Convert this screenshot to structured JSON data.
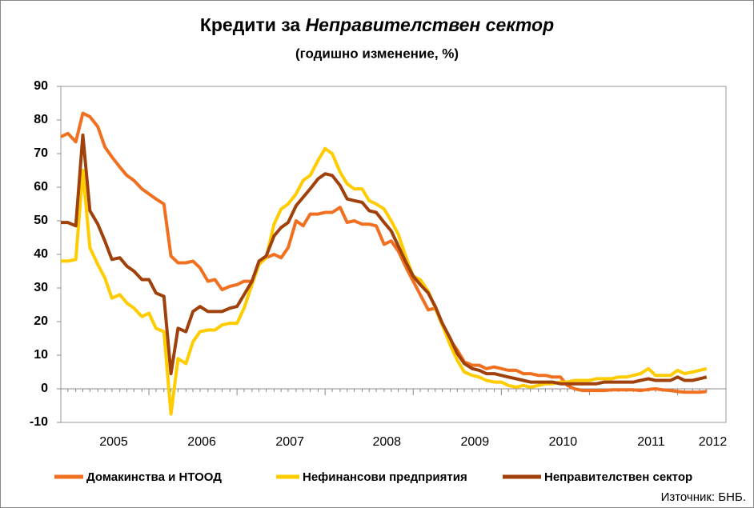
{
  "chart_data": {
    "type": "line",
    "title": "Кредити за",
    "title_emphasis": "Неправителствен сектор",
    "subtitle": "(годишно изменение, %)",
    "source": "Източник: БНБ.",
    "x": [
      2005,
      2005.08,
      2005.17,
      2005.25,
      2005.33,
      2005.42,
      2005.5,
      2005.58,
      2005.67,
      2005.75,
      2005.83,
      2005.92,
      2006,
      2006.08,
      2006.17,
      2006.25,
      2006.33,
      2006.42,
      2006.5,
      2006.58,
      2006.67,
      2006.75,
      2006.83,
      2006.92,
      2007,
      2007.08,
      2007.17,
      2007.25,
      2007.33,
      2007.42,
      2007.5,
      2007.58,
      2007.67,
      2007.75,
      2007.83,
      2007.92,
      2008,
      2008.08,
      2008.17,
      2008.25,
      2008.33,
      2008.42,
      2008.5,
      2008.58,
      2008.67,
      2008.75,
      2008.83,
      2008.92,
      2009,
      2009.08,
      2009.17,
      2009.25,
      2009.33,
      2009.42,
      2009.5,
      2009.58,
      2009.67,
      2009.75,
      2009.83,
      2009.92,
      2010,
      2010.08,
      2010.17,
      2010.25,
      2010.33,
      2010.42,
      2010.5,
      2010.58,
      2010.67,
      2010.75,
      2010.83,
      2010.92,
      2011,
      2011.08,
      2011.17,
      2011.25,
      2011.33,
      2011.42,
      2011.5,
      2011.58,
      2011.67,
      2011.75,
      2011.83,
      2011.92,
      2012,
      2012.08,
      2012.17,
      2012.25,
      2012.33
    ],
    "series": [
      {
        "name": "Домакинства и НТООД",
        "color": "#f07020",
        "values": [
          75,
          76,
          73.5,
          82,
          81,
          78,
          72,
          69,
          66,
          63.5,
          62,
          59.5,
          58,
          56.5,
          55,
          39.5,
          37.5,
          37.5,
          38,
          36,
          32,
          32.5,
          29.5,
          30.5,
          31,
          32,
          32,
          37.5,
          39,
          40,
          39,
          42,
          50,
          48.5,
          52,
          52,
          52.5,
          52.5,
          54,
          49.5,
          50,
          49,
          49,
          48.5,
          43,
          44,
          41,
          36,
          32,
          28,
          23.5,
          24,
          19,
          14.5,
          11.5,
          8,
          7,
          7,
          6,
          6.5,
          6,
          5.5,
          5.5,
          4.5,
          4.5,
          4,
          4,
          3.5,
          3.5,
          1,
          0,
          -0.5,
          -0.5,
          -0.5,
          -0.5,
          -0.3,
          -0.3,
          -0.3,
          -0.3,
          -0.5,
          -0.2,
          0,
          -0.3,
          -0.5,
          -0.8,
          -1,
          -1,
          -1,
          -0.8
        ]
      },
      {
        "name": "Нефинансови предприятия",
        "color": "#ffcc00",
        "values": [
          38,
          38,
          38.5,
          65,
          42,
          37,
          33,
          27,
          28,
          25.5,
          24,
          21.5,
          22.5,
          18,
          17,
          -7.5,
          9,
          7.5,
          14,
          17,
          17.5,
          17.5,
          19,
          19.5,
          19.5,
          24,
          31,
          37,
          39,
          49,
          53.5,
          55,
          58,
          62,
          63.5,
          68,
          71.5,
          70,
          64.5,
          61,
          59.5,
          59.5,
          56,
          55,
          53.5,
          50,
          46,
          39,
          33.5,
          32.5,
          29,
          24,
          19,
          13,
          8.5,
          5,
          4,
          3.5,
          2.5,
          2,
          2,
          1,
          0.5,
          1,
          0.5,
          1,
          1.5,
          1.5,
          2,
          2,
          2.5,
          2.5,
          2.5,
          3,
          3,
          3,
          3.5,
          3.5,
          4,
          4.5,
          6,
          4,
          4,
          4,
          5.5,
          4.5,
          5,
          5.5,
          6
        ]
      },
      {
        "name": "Неправителствен сектор",
        "color": "#a0400a",
        "values": [
          49.5,
          49.5,
          48.5,
          75.5,
          53,
          49,
          44,
          38.5,
          39,
          36.5,
          35,
          32.5,
          32.5,
          28.5,
          27.5,
          4.5,
          18,
          17,
          23,
          24.5,
          23,
          23,
          23,
          24,
          24.5,
          28,
          32,
          38,
          39.5,
          45.5,
          48,
          49.5,
          54.5,
          57,
          59.5,
          62.5,
          64,
          63.5,
          60.5,
          56.5,
          56,
          55.5,
          53,
          52.5,
          49.5,
          47,
          42.5,
          37.5,
          33.5,
          31,
          28.5,
          24.5,
          19.5,
          15,
          10.5,
          7.5,
          6,
          5.5,
          4.5,
          4.5,
          4,
          3.5,
          3,
          2.5,
          2,
          2,
          2,
          2,
          1.5,
          1.5,
          1.5,
          1.5,
          1.5,
          1.5,
          2,
          2,
          2,
          2,
          2,
          2.5,
          3,
          2.5,
          2.5,
          2.5,
          3.5,
          2.5,
          2.5,
          3,
          3.5
        ]
      }
    ],
    "xlim": [
      2005,
      2012.55
    ],
    "xticks": [
      {
        "value": 2005.6,
        "label": "2005"
      },
      {
        "value": 2006.6,
        "label": "2006"
      },
      {
        "value": 2007.6,
        "label": "2007"
      },
      {
        "value": 2008.7,
        "label": "2008"
      },
      {
        "value": 2009.7,
        "label": "2009"
      },
      {
        "value": 2010.7,
        "label": "2010"
      },
      {
        "value": 2011.7,
        "label": "2011"
      },
      {
        "value": 2012.4,
        "label": "2012"
      }
    ],
    "ylim": [
      -10,
      90
    ],
    "yticks": [
      -10,
      0,
      10,
      20,
      30,
      40,
      50,
      60,
      70,
      80,
      90
    ],
    "grid": false,
    "legend": "bottom"
  }
}
